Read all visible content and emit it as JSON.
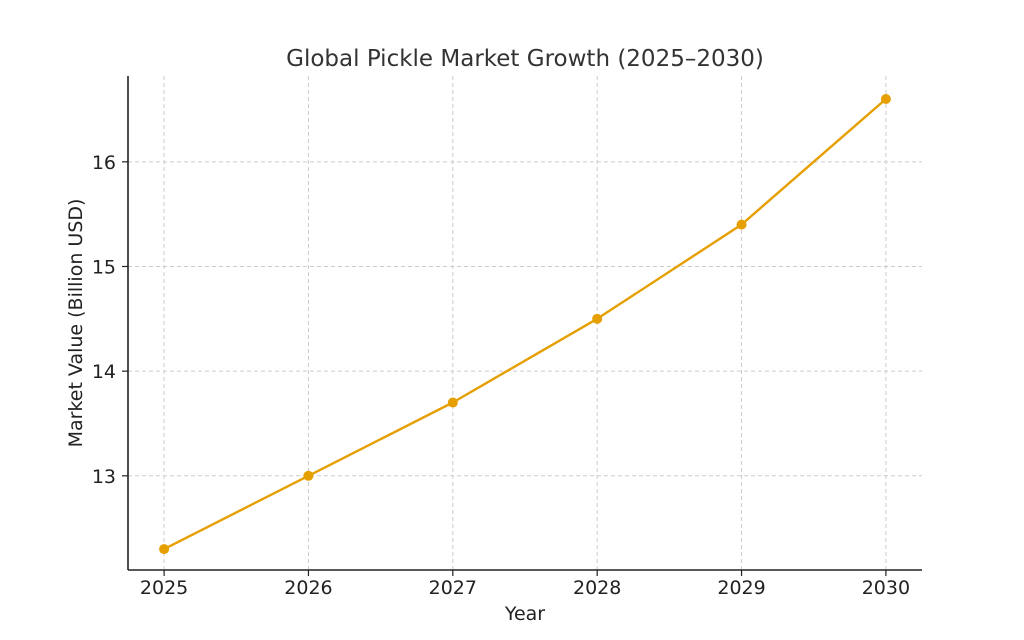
{
  "chart_data": {
    "type": "line",
    "title": "Global Pickle Market Growth (2025–2030)",
    "xlabel": "Year",
    "ylabel": "Market Value (Billion USD)",
    "x": [
      2025,
      2026,
      2027,
      2028,
      2029,
      2030
    ],
    "series": [
      {
        "values": [
          12.3,
          13.0,
          13.7,
          14.5,
          15.4,
          16.6
        ],
        "color": "#E69F00",
        "marker": "circle"
      }
    ],
    "x_ticks": [
      "2025",
      "2026",
      "2027",
      "2028",
      "2029",
      "2030"
    ],
    "y_ticks": [
      "13",
      "14",
      "15",
      "16"
    ],
    "xlim": [
      2024.75,
      2030.25
    ],
    "ylim": [
      12.1,
      16.82
    ],
    "grid": true,
    "legend": "none"
  }
}
